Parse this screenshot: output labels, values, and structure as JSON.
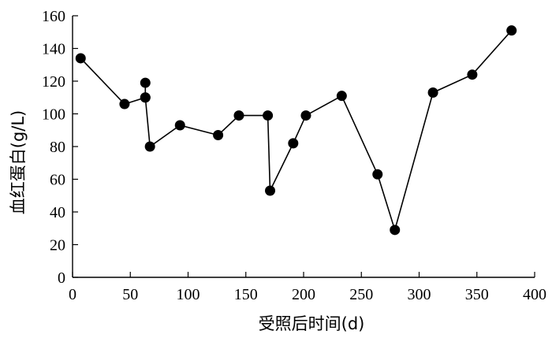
{
  "chart_data": {
    "type": "line",
    "xlabel": "受照后时间(d)",
    "ylabel": "血红蛋白(g/L)",
    "xlim": [
      0,
      400
    ],
    "ylim": [
      0,
      160
    ],
    "x_ticks": [
      0,
      50,
      100,
      150,
      200,
      250,
      300,
      350,
      400
    ],
    "y_ticks": [
      0,
      20,
      40,
      60,
      80,
      100,
      120,
      140,
      160
    ],
    "grid": false,
    "legend": "none",
    "series": [
      {
        "color": "#000000",
        "points": [
          {
            "x": 7,
            "y": 134
          },
          {
            "x": 45,
            "y": 106
          },
          {
            "x": 63,
            "y": 110
          },
          {
            "x": 63,
            "y": 119
          },
          {
            "x": 63,
            "y": 110
          },
          {
            "x": 67,
            "y": 80
          },
          {
            "x": 93,
            "y": 93
          },
          {
            "x": 126,
            "y": 87
          },
          {
            "x": 144,
            "y": 99
          },
          {
            "x": 169,
            "y": 99
          },
          {
            "x": 171,
            "y": 53
          },
          {
            "x": 191,
            "y": 82
          },
          {
            "x": 202,
            "y": 99
          },
          {
            "x": 233,
            "y": 111
          },
          {
            "x": 264,
            "y": 63
          },
          {
            "x": 279,
            "y": 29
          },
          {
            "x": 312,
            "y": 113
          },
          {
            "x": 346,
            "y": 124
          },
          {
            "x": 380,
            "y": 151
          }
        ]
      }
    ]
  }
}
